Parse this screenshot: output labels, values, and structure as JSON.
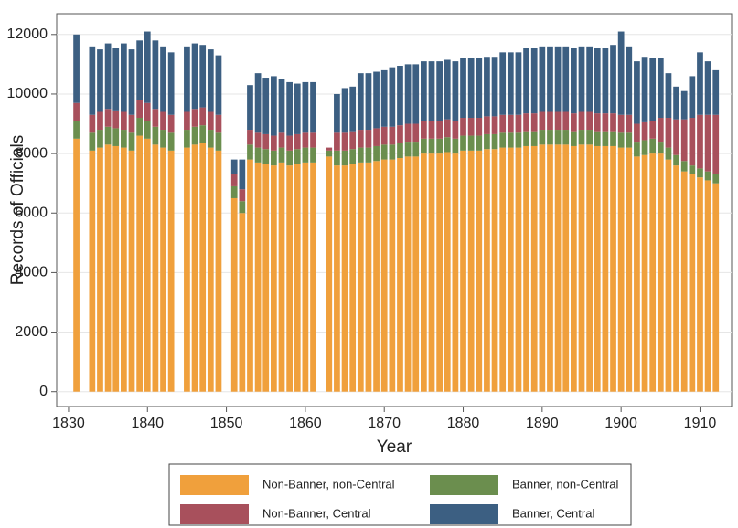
{
  "chart_data": {
    "type": "stacked_bar",
    "xlabel": "Year",
    "ylabel": "Records of Officials",
    "xlim": [
      1828.5,
      1914
    ],
    "xticks": [
      1830,
      1840,
      1850,
      1860,
      1870,
      1880,
      1890,
      1900,
      1910
    ],
    "ylim": [
      -500,
      12700
    ],
    "yticks": [
      0,
      2000,
      4000,
      6000,
      8000,
      10000,
      12000
    ],
    "grid": true,
    "legend_position": "bottom",
    "x": [
      1831,
      1832,
      1833,
      1834,
      1835,
      1836,
      1837,
      1838,
      1839,
      1840,
      1841,
      1842,
      1843,
      1844,
      1845,
      1846,
      1847,
      1848,
      1849,
      1850,
      1851,
      1852,
      1853,
      1854,
      1855,
      1856,
      1857,
      1858,
      1859,
      1860,
      1861,
      1862,
      1863,
      1864,
      1865,
      1866,
      1867,
      1868,
      1869,
      1870,
      1871,
      1872,
      1873,
      1874,
      1875,
      1876,
      1877,
      1878,
      1879,
      1880,
      1881,
      1882,
      1883,
      1884,
      1885,
      1886,
      1887,
      1888,
      1889,
      1890,
      1891,
      1892,
      1893,
      1894,
      1895,
      1896,
      1897,
      1898,
      1899,
      1900,
      1901,
      1902,
      1903,
      1904,
      1905,
      1906,
      1907,
      1908,
      1909,
      1910,
      1911,
      1912
    ],
    "series": [
      {
        "name": "Non-Banner, non-Central",
        "color": "#f0a03c",
        "values": [
          8500,
          null,
          8100,
          8200,
          8300,
          8250,
          8200,
          8100,
          8600,
          8500,
          8300,
          8200,
          8100,
          null,
          8200,
          8300,
          8350,
          8200,
          8100,
          null,
          6500,
          6000,
          7800,
          7700,
          7650,
          7600,
          7700,
          7600,
          7650,
          7700,
          7700,
          null,
          7900,
          7600,
          7600,
          7650,
          7700,
          7700,
          7750,
          7800,
          7800,
          7850,
          7900,
          7900,
          8000,
          8000,
          8000,
          8050,
          8000,
          8100,
          8100,
          8100,
          8150,
          8150,
          8200,
          8200,
          8200,
          8250,
          8250,
          8300,
          8300,
          8300,
          8300,
          8250,
          8300,
          8300,
          8250,
          8250,
          8250,
          8200,
          8200,
          7900,
          7950,
          8000,
          8000,
          7800,
          7600,
          7400,
          7300,
          7200,
          7100,
          7000
        ]
      },
      {
        "name": "Banner, non-Central",
        "color": "#6b8e4e",
        "values": [
          600,
          null,
          600,
          600,
          600,
          600,
          600,
          600,
          600,
          600,
          600,
          600,
          600,
          null,
          600,
          600,
          600,
          600,
          600,
          null,
          400,
          400,
          500,
          500,
          500,
          500,
          500,
          500,
          500,
          500,
          500,
          null,
          200,
          500,
          500,
          500,
          500,
          500,
          500,
          500,
          500,
          500,
          500,
          500,
          500,
          500,
          500,
          500,
          500,
          500,
          500,
          500,
          500,
          500,
          500,
          500,
          500,
          500,
          500,
          500,
          500,
          500,
          500,
          500,
          500,
          500,
          500,
          500,
          500,
          500,
          500,
          500,
          500,
          500,
          400,
          400,
          350,
          350,
          300,
          300,
          300,
          300
        ]
      },
      {
        "name": "Non-Banner, Central",
        "color": "#a8505c",
        "values": [
          600,
          null,
          600,
          600,
          600,
          600,
          600,
          600,
          600,
          600,
          600,
          600,
          600,
          null,
          600,
          600,
          600,
          600,
          600,
          null,
          400,
          400,
          500,
          500,
          500,
          500,
          500,
          500,
          500,
          500,
          500,
          null,
          100,
          600,
          600,
          600,
          600,
          600,
          600,
          600,
          600,
          600,
          600,
          600,
          600,
          600,
          600,
          600,
          600,
          600,
          600,
          600,
          600,
          600,
          600,
          600,
          600,
          600,
          600,
          600,
          600,
          600,
          600,
          600,
          600,
          600,
          600,
          600,
          600,
          600,
          600,
          600,
          600,
          600,
          800,
          1000,
          1200,
          1400,
          1600,
          1800,
          1900,
          2000
        ]
      },
      {
        "name": "Banner, Central",
        "color": "#3c5f82",
        "values": [
          2300,
          null,
          2300,
          2100,
          2200,
          2100,
          2300,
          2200,
          2000,
          2400,
          2300,
          2200,
          2100,
          null,
          2200,
          2200,
          2100,
          2100,
          2000,
          null,
          500,
          1000,
          1500,
          2000,
          1900,
          2000,
          1800,
          1800,
          1700,
          1700,
          1700,
          null,
          0,
          1300,
          1500,
          1500,
          1900,
          1900,
          1900,
          1900,
          2000,
          2000,
          2000,
          2000,
          2000,
          2000,
          2000,
          2000,
          2000,
          2000,
          2000,
          2000,
          2000,
          2000,
          2100,
          2100,
          2100,
          2200,
          2200,
          2200,
          2200,
          2200,
          2200,
          2200,
          2200,
          2200,
          2200,
          2200,
          2300,
          2800,
          2300,
          2100,
          2200,
          2100,
          2000,
          1500,
          1100,
          950,
          1400,
          2100,
          1800,
          1500
        ]
      }
    ]
  }
}
